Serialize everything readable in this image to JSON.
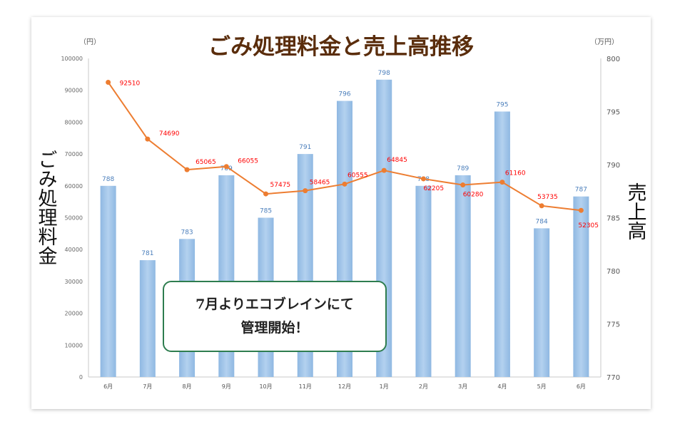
{
  "chart_data": {
    "type": "bar+line",
    "title": "ごみ処理料金と売上高推移",
    "categories": [
      "6月",
      "7月",
      "8月",
      "9月",
      "10月",
      "11月",
      "12月",
      "1月",
      "2月",
      "3月",
      "4月",
      "5月",
      "6月"
    ],
    "series": [
      {
        "name": "売上高",
        "type": "bar",
        "axis": "right",
        "values": [
          788,
          781,
          783,
          789,
          785,
          791,
          796,
          798,
          788,
          789,
          795,
          784,
          787
        ],
        "labels": [
          "788",
          "781",
          "783",
          "789",
          "785",
          "791",
          "796",
          "798",
          "788",
          "789",
          "795",
          "784",
          "787"
        ],
        "color": "#9dc3e6"
      },
      {
        "name": "ごみ処理料金",
        "type": "line",
        "axis": "left",
        "values": [
          92510,
          74690,
          65065,
          66055,
          57475,
          58465,
          60555,
          64845,
          62205,
          60280,
          61160,
          53735,
          52305
        ],
        "labels": [
          "92510",
          "74690",
          "65065",
          "66055",
          "57475",
          "58465",
          "60555",
          "64845",
          "62205",
          "60280",
          "61160",
          "53735",
          "52305"
        ],
        "color": "#ed7d31",
        "label_color": "#ff0000"
      }
    ],
    "left_axis": {
      "label": "ごみ処理料金",
      "unit": "（円）",
      "range": [
        0,
        100000
      ],
      "ticks": [
        "0",
        "10000",
        "20000",
        "30000",
        "40000",
        "50000",
        "60000",
        "70000",
        "80000",
        "90000",
        "100000"
      ]
    },
    "right_axis": {
      "label": "売上高",
      "unit": "（万円）",
      "range": [
        770,
        800
      ],
      "ticks": [
        "770",
        "775",
        "780",
        "785",
        "790",
        "795",
        "800"
      ]
    },
    "grid": false,
    "legend": "none"
  },
  "annotation": {
    "line1": "7月よりエコブレインにて",
    "line2": "管理開始！"
  }
}
